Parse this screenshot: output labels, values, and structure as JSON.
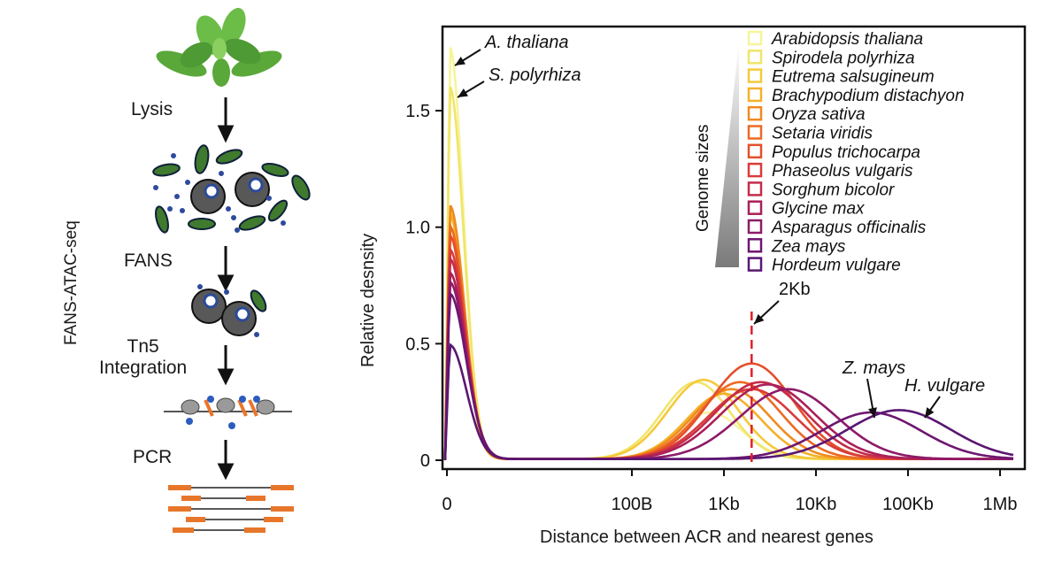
{
  "workflow": {
    "side_label": "FANS-ATAC-seq",
    "steps": [
      "Lysis",
      "FANS",
      "Tn5\nIntegration",
      "PCR"
    ]
  },
  "chart_data": {
    "type": "line",
    "xlabel": "Distance between ACR and nearest genes",
    "ylabel": "Relative desnsity",
    "x_ticks": [
      "0",
      "100B",
      "1Kb",
      "10Kb",
      "100Kb",
      "1Mb"
    ],
    "y_ticks": [
      "0",
      "0.5",
      "1.0",
      "1.5"
    ],
    "ylim": [
      0,
      1.85
    ],
    "x_scale": "log-like (0 at left, then 100B, 1Kb, 10Kb, 100Kb, 1Mb)",
    "grid": false,
    "legend_position": "top-right",
    "legend_side_label": "Genome sizes",
    "series": [
      {
        "name": "Arabidopsis thaliana",
        "color": "#f7f49a",
        "near_peak": 1.77,
        "far_peak_x": "700B",
        "far_peak_y": 0.2
      },
      {
        "name": "Spirodela polyrhiza",
        "color": "#f0e56a",
        "near_peak": 1.6,
        "far_peak_x": "500B",
        "far_peak_y": 0.33
      },
      {
        "name": "Eutrema salsugineum",
        "color": "#f5c93a",
        "near_peak": 1.08,
        "far_peak_x": "600B",
        "far_peak_y": 0.34
      },
      {
        "name": "Brachypodium distachyon",
        "color": "#f4b12a",
        "near_peak": 1.05,
        "far_peak_x": "1Kb",
        "far_peak_y": 0.28
      },
      {
        "name": "Oryza sativa",
        "color": "#f08a20",
        "near_peak": 1.09,
        "far_peak_x": "1.2Kb",
        "far_peak_y": 0.3
      },
      {
        "name": "Setaria viridis",
        "color": "#ec6a22",
        "near_peak": 1.0,
        "far_peak_x": "1.5Kb",
        "far_peak_y": 0.33
      },
      {
        "name": "Populus trichocarpa",
        "color": "#e4502c",
        "near_peak": 0.96,
        "far_peak_x": "2Kb",
        "far_peak_y": 0.41
      },
      {
        "name": "Phaseolus vulgaris",
        "color": "#d83c3a",
        "near_peak": 0.9,
        "far_peak_x": "2Kb",
        "far_peak_y": 0.3
      },
      {
        "name": "Sorghum bicolor",
        "color": "#c42c4a",
        "near_peak": 0.86,
        "far_peak_x": "2.5Kb",
        "far_peak_y": 0.33
      },
      {
        "name": "Glycine max",
        "color": "#aa2058",
        "near_peak": 0.8,
        "far_peak_x": "3Kb",
        "far_peak_y": 0.32
      },
      {
        "name": "Asparagus officinalis",
        "color": "#8e1a68",
        "near_peak": 0.76,
        "far_peak_x": "5Kb",
        "far_peak_y": 0.3
      },
      {
        "name": "Zea mays",
        "color": "#6e1670",
        "near_peak": 0.71,
        "far_peak_x": "40Kb",
        "far_peak_y": 0.2
      },
      {
        "name": "Hordeum vulgare",
        "color": "#5a1672",
        "near_peak": 0.49,
        "far_peak_x": "80Kb",
        "far_peak_y": 0.21
      }
    ],
    "annotations": [
      {
        "text": "A. thaliana"
      },
      {
        "text": "S. polyrhiza"
      },
      {
        "text": "2Kb"
      },
      {
        "text": "Z. mays"
      },
      {
        "text": "H. vulgare"
      }
    ],
    "reference_line": {
      "x": "2Kb",
      "color": "#e0202a"
    }
  }
}
